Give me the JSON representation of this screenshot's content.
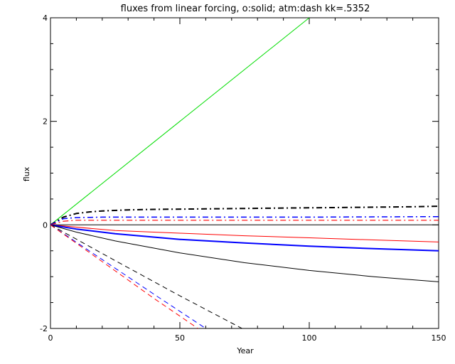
{
  "chart_data": {
    "type": "line",
    "title": "fluxes from linear forcing, o:solid; atm:dash kk=.5352",
    "xlabel": "Year",
    "ylabel": "flux",
    "xlim": [
      0,
      150
    ],
    "ylim": [
      -2,
      4
    ],
    "xticks": [
      0,
      50,
      100,
      150
    ],
    "yticks": [
      -2,
      0,
      2,
      4
    ],
    "xtick_labels": [
      "0",
      "50",
      "100",
      "150"
    ],
    "ytick_labels": [
      "-2",
      "0",
      "2",
      "4"
    ],
    "grid": false,
    "series": [
      {
        "color": "#00dd00",
        "style": "solid",
        "width": 1,
        "x": [
          0,
          100
        ],
        "y": [
          0,
          4.0
        ]
      },
      {
        "color": "#000000",
        "style": "dashdot",
        "width": 2,
        "x": [
          0,
          5,
          10,
          15,
          20,
          30,
          40,
          60,
          80,
          100,
          120,
          140,
          150
        ],
        "y": [
          0,
          0.15,
          0.22,
          0.25,
          0.27,
          0.29,
          0.3,
          0.31,
          0.32,
          0.33,
          0.34,
          0.35,
          0.36
        ]
      },
      {
        "color": "#0000ff",
        "style": "dashdot",
        "width": 1.5,
        "x": [
          0,
          5,
          10,
          20,
          50,
          100,
          150
        ],
        "y": [
          0,
          0.12,
          0.14,
          0.15,
          0.15,
          0.15,
          0.16
        ]
      },
      {
        "color": "#ff0000",
        "style": "dashdot",
        "width": 1.2,
        "x": [
          0,
          5,
          10,
          20,
          50,
          100,
          150
        ],
        "y": [
          0,
          0.07,
          0.09,
          0.09,
          0.09,
          0.09,
          0.09
        ]
      },
      {
        "color": "#000000",
        "style": "solid",
        "width": 1,
        "x": [
          0,
          150
        ],
        "y": [
          0,
          0
        ]
      },
      {
        "color": "#ff0000",
        "style": "solid",
        "width": 1,
        "x": [
          0,
          25,
          50,
          75,
          100,
          125,
          150
        ],
        "y": [
          0,
          -0.11,
          -0.16,
          -0.21,
          -0.25,
          -0.29,
          -0.33
        ]
      },
      {
        "color": "#0000ff",
        "style": "solid",
        "width": 2,
        "x": [
          0,
          10,
          25,
          50,
          75,
          100,
          125,
          150
        ],
        "y": [
          0,
          -0.08,
          -0.17,
          -0.28,
          -0.35,
          -0.41,
          -0.46,
          -0.5
        ]
      },
      {
        "color": "#000000",
        "style": "solid",
        "width": 1,
        "x": [
          0,
          10,
          25,
          50,
          75,
          100,
          125,
          150
        ],
        "y": [
          0,
          -0.14,
          -0.31,
          -0.54,
          -0.73,
          -0.88,
          -1.0,
          -1.1
        ]
      },
      {
        "color": "#000000",
        "style": "dashed",
        "width": 1,
        "x": [
          0,
          25,
          50,
          74
        ],
        "y": [
          0,
          -0.69,
          -1.37,
          -2.0
        ]
      },
      {
        "color": "#0000ff",
        "style": "dashed",
        "width": 1,
        "x": [
          0,
          20,
          40,
          60
        ],
        "y": [
          0,
          -0.67,
          -1.34,
          -2.0
        ]
      },
      {
        "color": "#ff0000",
        "style": "dashed",
        "width": 1,
        "x": [
          0,
          20,
          40,
          57
        ],
        "y": [
          0,
          -0.71,
          -1.42,
          -2.0
        ]
      }
    ]
  }
}
